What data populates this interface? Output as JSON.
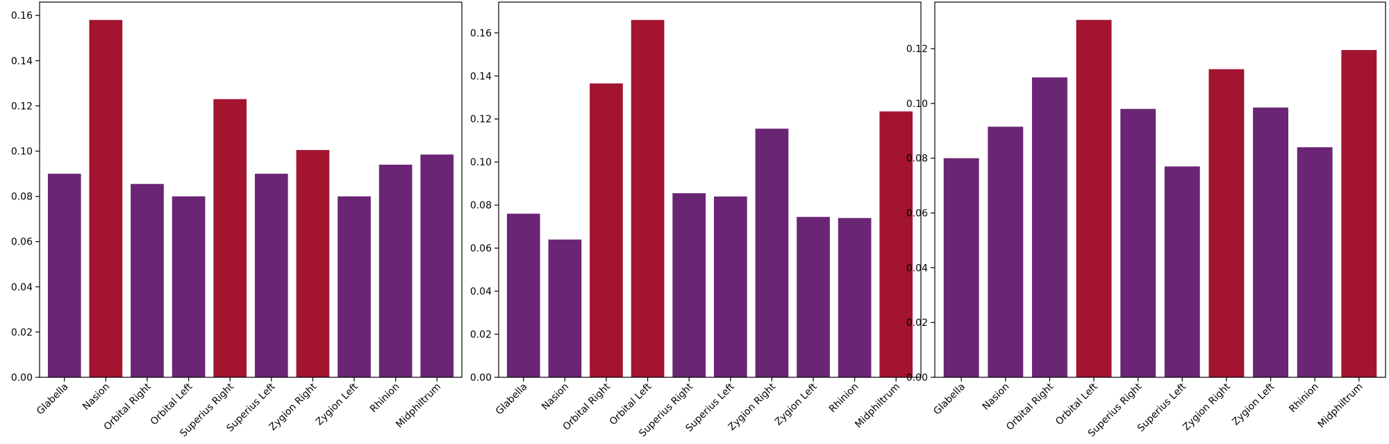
{
  "colors": {
    "purple": "#6A2674",
    "red": "#A21430",
    "axis": "#000000",
    "background": "#FFFFFF"
  },
  "chart_data": [
    {
      "type": "bar",
      "title": "",
      "xlabel": "",
      "ylabel": "",
      "categories": [
        "Glabella",
        "Nasion",
        "Orbital Right",
        "Orbital Left",
        "Superius Right",
        "Superius Left",
        "Zygion Right",
        "Zygion Left",
        "Rhinion",
        "Midphiltrum"
      ],
      "values": [
        0.09,
        0.158,
        0.0855,
        0.08,
        0.123,
        0.09,
        0.1005,
        0.08,
        0.094,
        0.0985
      ],
      "highlight": [
        false,
        true,
        false,
        false,
        true,
        false,
        true,
        false,
        false,
        false
      ],
      "ylim": [
        0,
        0.1659
      ],
      "yticks": [
        0.0,
        0.02,
        0.04,
        0.06,
        0.08,
        0.1,
        0.12,
        0.14,
        0.16
      ],
      "ytick_labels": [
        "0.00",
        "0.02",
        "0.04",
        "0.06",
        "0.08",
        "0.10",
        "0.12",
        "0.14",
        "0.16"
      ],
      "grid": false,
      "legend": "none"
    },
    {
      "type": "bar",
      "title": "",
      "xlabel": "",
      "ylabel": "",
      "categories": [
        "Glabella",
        "Nasion",
        "Orbital Right",
        "Orbital Left",
        "Superius Right",
        "Superius Left",
        "Zygion Right",
        "Zygion Left",
        "Rhinion",
        "Midphiltrum"
      ],
      "values": [
        0.076,
        0.064,
        0.1365,
        0.166,
        0.0855,
        0.084,
        0.1155,
        0.0745,
        0.074,
        0.1235
      ],
      "highlight": [
        false,
        false,
        true,
        true,
        false,
        false,
        false,
        false,
        false,
        true
      ],
      "ylim": [
        0,
        0.1743
      ],
      "yticks": [
        0.0,
        0.02,
        0.04,
        0.06,
        0.08,
        0.1,
        0.12,
        0.14,
        0.16
      ],
      "ytick_labels": [
        "0.00",
        "0.02",
        "0.04",
        "0.06",
        "0.08",
        "0.10",
        "0.12",
        "0.14",
        "0.16"
      ],
      "grid": false,
      "legend": "none"
    },
    {
      "type": "bar",
      "title": "",
      "xlabel": "",
      "ylabel": "",
      "categories": [
        "Glabella",
        "Nasion",
        "Orbital Right",
        "Orbital Left",
        "Superius Right",
        "Superius Left",
        "Zygion Right",
        "Zygion Left",
        "Rhinion",
        "Midphiltrum"
      ],
      "values": [
        0.08,
        0.0915,
        0.1095,
        0.1305,
        0.098,
        0.077,
        0.1125,
        0.0985,
        0.084,
        0.1195
      ],
      "highlight": [
        false,
        false,
        false,
        true,
        false,
        false,
        true,
        false,
        false,
        true
      ],
      "ylim": [
        0,
        0.137
      ],
      "yticks": [
        0.0,
        0.02,
        0.04,
        0.06,
        0.08,
        0.1,
        0.12
      ],
      "ytick_labels": [
        "0.00",
        "0.02",
        "0.04",
        "0.06",
        "0.08",
        "0.10",
        "0.12"
      ],
      "grid": false,
      "legend": "none"
    }
  ]
}
